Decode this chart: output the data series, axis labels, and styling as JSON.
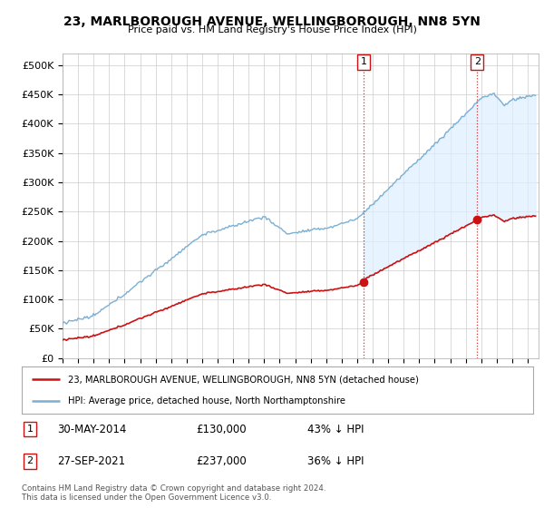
{
  "title": "23, MARLBOROUGH AVENUE, WELLINGBOROUGH, NN8 5YN",
  "subtitle": "Price paid vs. HM Land Registry's House Price Index (HPI)",
  "ylabel_ticks": [
    "£0",
    "£50K",
    "£100K",
    "£150K",
    "£200K",
    "£250K",
    "£300K",
    "£350K",
    "£400K",
    "£450K",
    "£500K"
  ],
  "ytick_vals": [
    0,
    50000,
    100000,
    150000,
    200000,
    250000,
    300000,
    350000,
    400000,
    450000,
    500000
  ],
  "ylim": [
    0,
    520000
  ],
  "xlim_start": 1995.0,
  "xlim_end": 2025.7,
  "hpi_color": "#7bafd4",
  "hpi_fill_color": "#ddeeff",
  "price_color": "#cc1111",
  "sale1_x": 2014.41,
  "sale1_y": 130000,
  "sale1_label": "1",
  "sale2_x": 2021.74,
  "sale2_y": 237000,
  "sale2_label": "2",
  "legend_line1": "23, MARLBOROUGH AVENUE, WELLINGBOROUGH, NN8 5YN (detached house)",
  "legend_line2": "HPI: Average price, detached house, North Northamptonshire",
  "annotation1_date": "30-MAY-2014",
  "annotation1_price": "£130,000",
  "annotation1_hpi": "43% ↓ HPI",
  "annotation2_date": "27-SEP-2021",
  "annotation2_price": "£237,000",
  "annotation2_hpi": "36% ↓ HPI",
  "footer": "Contains HM Land Registry data © Crown copyright and database right 2024.\nThis data is licensed under the Open Government Licence v3.0.",
  "background_color": "#ffffff",
  "grid_color": "#cccccc"
}
